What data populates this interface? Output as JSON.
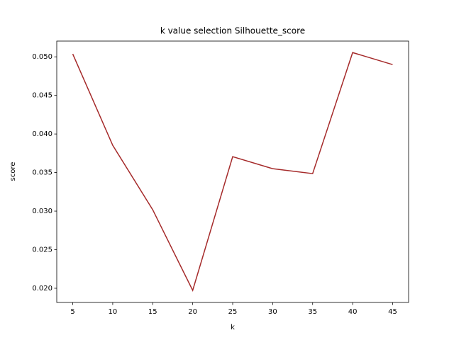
{
  "chart_data": {
    "type": "line",
    "title": "k value selection Silhouette_score",
    "xlabel": "k",
    "ylabel": "score",
    "x": [
      5,
      10,
      15,
      20,
      25,
      30,
      35,
      40,
      45
    ],
    "series": [
      {
        "name": "score",
        "color": "#a52a2a",
        "values": [
          0.05037,
          0.03853,
          0.03018,
          0.01972,
          0.03706,
          0.0355,
          0.03486,
          0.05055,
          0.04899
        ]
      }
    ],
    "xlim": [
      3,
      47
    ],
    "xticks": [
      5,
      10,
      15,
      20,
      25,
      30,
      35,
      40,
      45
    ],
    "ylim": [
      0.01816,
      0.05204
    ],
    "yticks": [
      {
        "value": 0.02,
        "label": "0.020"
      },
      {
        "value": 0.025,
        "label": "0.025"
      },
      {
        "value": 0.03,
        "label": "0.030"
      },
      {
        "value": 0.035,
        "label": "0.035"
      },
      {
        "value": 0.04,
        "label": "0.040"
      },
      {
        "value": 0.045,
        "label": "0.045"
      },
      {
        "value": 0.05,
        "label": "0.050"
      }
    ]
  }
}
